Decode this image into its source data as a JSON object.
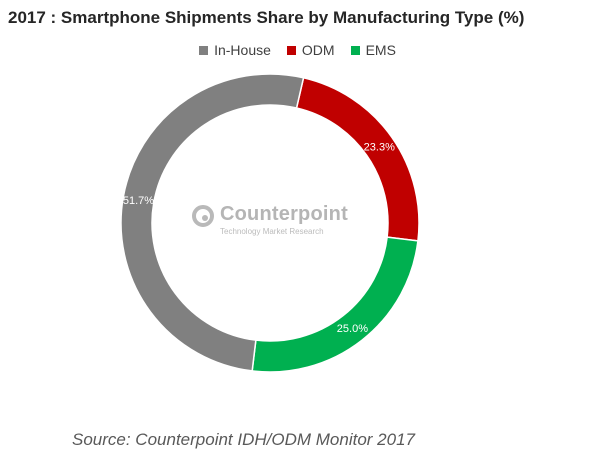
{
  "chart_data": {
    "type": "pie",
    "variant": "donut",
    "title": "2017 : Smartphone Shipments Share by Manufacturing Type (%)",
    "legend_position": "top",
    "categories": [
      "In-House",
      "ODM",
      "EMS"
    ],
    "values": [
      51.7,
      23.3,
      25.0
    ],
    "value_labels": [
      "51.7%",
      "23.3%",
      "25.0%"
    ],
    "colors": [
      "#808080",
      "#c00000",
      "#00b050"
    ],
    "start_category": "ODM",
    "direction": "clockwise"
  },
  "watermark": {
    "name": "Counterpoint",
    "tagline": "Technology Market Research"
  },
  "source": "Source: Counterpoint IDH/ODM Monitor 2017"
}
